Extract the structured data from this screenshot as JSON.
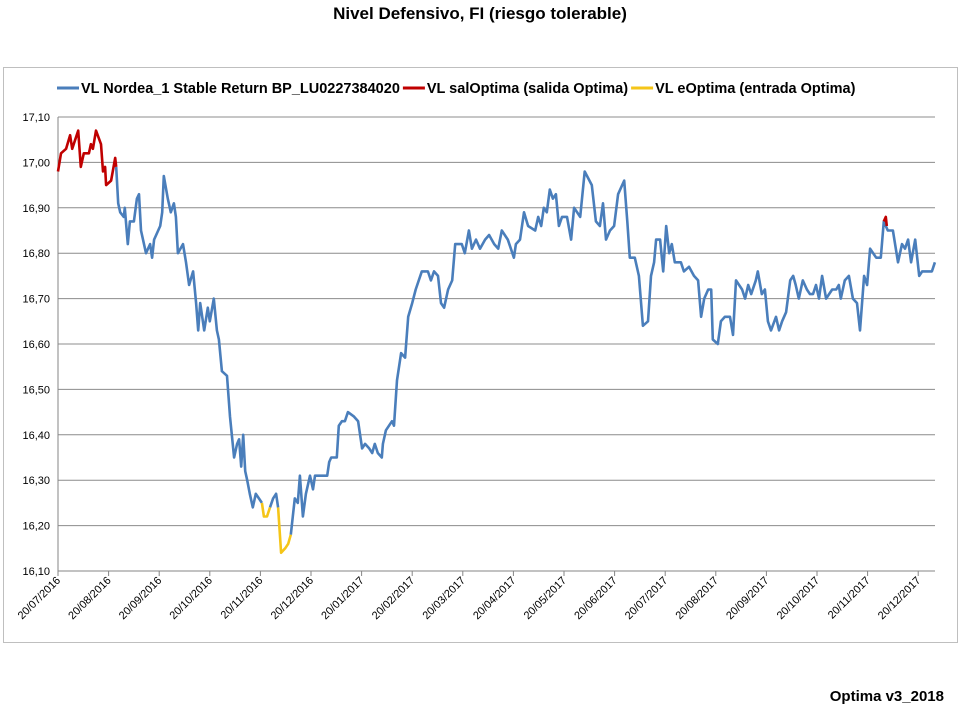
{
  "chart_data": {
    "type": "line",
    "title": "Nivel Defensivo, FI (riesgo tolerable)",
    "xlabel": "",
    "ylabel": "",
    "x_units": "months since 20/07/2016",
    "ylim": [
      16.1,
      17.1
    ],
    "yticks": [
      "16,10",
      "16,20",
      "16,30",
      "16,40",
      "16,50",
      "16,60",
      "16,70",
      "16,80",
      "16,90",
      "17,00",
      "17,10"
    ],
    "xticks": [
      "20/07/2016",
      "20/08/2016",
      "20/09/2016",
      "20/10/2016",
      "20/11/2016",
      "20/12/2016",
      "20/01/2017",
      "20/02/2017",
      "20/03/2017",
      "20/04/2017",
      "20/05/2017",
      "20/06/2017",
      "20/07/2017",
      "20/08/2017",
      "20/09/2017",
      "20/10/2017",
      "20/11/2017",
      "20/12/2017"
    ],
    "grid": true,
    "legend_position": "top",
    "series": [
      {
        "name": "VL Nordea_1 Stable Return BP_LU0227384020",
        "color": "#4a7ebb",
        "segments": [
          [
            [
              1.15,
              16.99
            ],
            [
              1.19,
              16.91
            ],
            [
              1.23,
              16.89
            ],
            [
              1.3,
              16.88
            ],
            [
              1.32,
              16.9
            ],
            [
              1.38,
              16.82
            ],
            [
              1.42,
              16.87
            ],
            [
              1.5,
              16.87
            ],
            [
              1.56,
              16.92
            ],
            [
              1.6,
              16.93
            ],
            [
              1.64,
              16.85
            ],
            [
              1.74,
              16.8
            ],
            [
              1.82,
              16.82
            ],
            [
              1.86,
              16.79
            ],
            [
              1.9,
              16.83
            ],
            [
              2.02,
              16.86
            ],
            [
              2.06,
              16.89
            ],
            [
              2.09,
              16.97
            ],
            [
              2.17,
              16.92
            ],
            [
              2.23,
              16.89
            ],
            [
              2.29,
              16.91
            ],
            [
              2.33,
              16.88
            ],
            [
              2.37,
              16.8
            ],
            [
              2.47,
              16.82
            ],
            [
              2.53,
              16.78
            ],
            [
              2.59,
              16.73
            ],
            [
              2.67,
              16.76
            ],
            [
              2.73,
              16.69
            ],
            [
              2.77,
              16.63
            ],
            [
              2.81,
              16.69
            ],
            [
              2.89,
              16.63
            ],
            [
              2.96,
              16.68
            ],
            [
              3.0,
              16.65
            ],
            [
              3.08,
              16.7
            ],
            [
              3.14,
              16.63
            ],
            [
              3.18,
              16.61
            ],
            [
              3.24,
              16.54
            ],
            [
              3.34,
              16.53
            ],
            [
              3.4,
              16.44
            ],
            [
              3.48,
              16.35
            ],
            [
              3.54,
              16.38
            ],
            [
              3.58,
              16.39
            ],
            [
              3.62,
              16.33
            ],
            [
              3.66,
              16.4
            ],
            [
              3.7,
              16.32
            ],
            [
              3.74,
              16.3
            ],
            [
              3.79,
              16.27
            ],
            [
              3.85,
              16.24
            ],
            [
              3.91,
              16.27
            ],
            [
              3.97,
              16.26
            ],
            [
              4.03,
              16.25
            ]
          ],
          [
            [
              4.19,
              16.24
            ],
            [
              4.25,
              16.26
            ],
            [
              4.31,
              16.27
            ],
            [
              4.35,
              16.24
            ]
          ],
          [
            [
              4.6,
              16.18
            ],
            [
              4.64,
              16.22
            ],
            [
              4.68,
              16.26
            ],
            [
              4.74,
              16.25
            ],
            [
              4.78,
              16.31
            ],
            [
              4.84,
              16.22
            ],
            [
              4.9,
              16.27
            ],
            [
              4.98,
              16.31
            ],
            [
              5.04,
              16.28
            ],
            [
              5.08,
              16.31
            ],
            [
              5.32,
              16.31
            ],
            [
              5.36,
              16.34
            ],
            [
              5.4,
              16.35
            ],
            [
              5.51,
              16.35
            ],
            [
              5.55,
              16.42
            ],
            [
              5.61,
              16.43
            ],
            [
              5.67,
              16.43
            ],
            [
              5.73,
              16.45
            ],
            [
              5.85,
              16.44
            ],
            [
              5.93,
              16.43
            ],
            [
              6.01,
              16.37
            ],
            [
              6.07,
              16.38
            ],
            [
              6.15,
              16.37
            ],
            [
              6.21,
              16.36
            ],
            [
              6.26,
              16.38
            ],
            [
              6.32,
              16.36
            ],
            [
              6.4,
              16.35
            ],
            [
              6.42,
              16.38
            ],
            [
              6.48,
              16.41
            ],
            [
              6.6,
              16.43
            ],
            [
              6.64,
              16.42
            ],
            [
              6.7,
              16.52
            ],
            [
              6.78,
              16.58
            ],
            [
              6.86,
              16.57
            ],
            [
              6.92,
              16.66
            ],
            [
              7.0,
              16.69
            ],
            [
              7.07,
              16.72
            ],
            [
              7.19,
              16.76
            ],
            [
              7.31,
              16.76
            ],
            [
              7.37,
              16.74
            ],
            [
              7.43,
              16.76
            ],
            [
              7.51,
              16.75
            ],
            [
              7.57,
              16.69
            ],
            [
              7.63,
              16.68
            ],
            [
              7.71,
              16.72
            ],
            [
              7.79,
              16.74
            ],
            [
              7.85,
              16.82
            ],
            [
              7.98,
              16.82
            ],
            [
              8.04,
              16.8
            ],
            [
              8.12,
              16.85
            ],
            [
              8.18,
              16.81
            ],
            [
              8.26,
              16.83
            ],
            [
              8.34,
              16.81
            ],
            [
              8.44,
              16.83
            ],
            [
              8.52,
              16.84
            ],
            [
              8.62,
              16.82
            ],
            [
              8.7,
              16.81
            ],
            [
              8.77,
              16.85
            ],
            [
              8.89,
              16.83
            ],
            [
              9.01,
              16.79
            ],
            [
              9.05,
              16.82
            ],
            [
              9.13,
              16.83
            ],
            [
              9.21,
              16.89
            ],
            [
              9.29,
              16.86
            ],
            [
              9.43,
              16.85
            ],
            [
              9.49,
              16.88
            ],
            [
              9.55,
              16.86
            ],
            [
              9.6,
              16.9
            ],
            [
              9.66,
              16.89
            ],
            [
              9.72,
              16.94
            ],
            [
              9.78,
              16.92
            ],
            [
              9.84,
              16.93
            ],
            [
              9.9,
              16.86
            ],
            [
              9.96,
              16.88
            ],
            [
              10.06,
              16.88
            ],
            [
              10.14,
              16.83
            ],
            [
              10.2,
              16.9
            ],
            [
              10.32,
              16.88
            ],
            [
              10.41,
              16.98
            ],
            [
              10.55,
              16.95
            ],
            [
              10.63,
              16.87
            ],
            [
              10.71,
              16.86
            ],
            [
              10.77,
              16.91
            ],
            [
              10.83,
              16.83
            ],
            [
              10.91,
              16.85
            ],
            [
              10.99,
              16.86
            ],
            [
              11.07,
              16.93
            ],
            [
              11.19,
              16.96
            ],
            [
              11.25,
              16.87
            ],
            [
              11.3,
              16.79
            ],
            [
              11.4,
              16.79
            ],
            [
              11.48,
              16.75
            ],
            [
              11.56,
              16.64
            ],
            [
              11.66,
              16.65
            ],
            [
              11.72,
              16.75
            ],
            [
              11.78,
              16.78
            ],
            [
              11.82,
              16.83
            ],
            [
              11.9,
              16.83
            ],
            [
              11.96,
              16.76
            ],
            [
              12.02,
              16.86
            ],
            [
              12.08,
              16.8
            ],
            [
              12.13,
              16.82
            ],
            [
              12.19,
              16.78
            ],
            [
              12.31,
              16.78
            ],
            [
              12.37,
              16.76
            ],
            [
              12.47,
              16.77
            ],
            [
              12.57,
              16.75
            ],
            [
              12.65,
              16.74
            ],
            [
              12.71,
              16.66
            ],
            [
              12.77,
              16.7
            ],
            [
              12.85,
              16.72
            ],
            [
              12.91,
              16.72
            ],
            [
              12.94,
              16.61
            ],
            [
              13.04,
              16.6
            ],
            [
              13.1,
              16.65
            ],
            [
              13.18,
              16.66
            ],
            [
              13.28,
              16.66
            ],
            [
              13.34,
              16.62
            ],
            [
              13.4,
              16.74
            ],
            [
              13.52,
              16.72
            ],
            [
              13.58,
              16.7
            ],
            [
              13.64,
              16.73
            ],
            [
              13.7,
              16.71
            ],
            [
              13.79,
              16.74
            ],
            [
              13.83,
              16.76
            ],
            [
              13.91,
              16.71
            ],
            [
              13.97,
              16.72
            ],
            [
              14.03,
              16.65
            ],
            [
              14.09,
              16.63
            ],
            [
              14.19,
              16.66
            ],
            [
              14.25,
              16.63
            ],
            [
              14.31,
              16.65
            ],
            [
              14.39,
              16.67
            ],
            [
              14.47,
              16.74
            ],
            [
              14.53,
              16.75
            ],
            [
              14.58,
              16.73
            ],
            [
              14.64,
              16.7
            ],
            [
              14.72,
              16.74
            ],
            [
              14.8,
              16.72
            ],
            [
              14.86,
              16.71
            ],
            [
              14.92,
              16.71
            ],
            [
              14.98,
              16.73
            ],
            [
              15.04,
              16.7
            ],
            [
              15.1,
              16.75
            ],
            [
              15.18,
              16.7
            ],
            [
              15.24,
              16.71
            ],
            [
              15.3,
              16.72
            ],
            [
              15.38,
              16.72
            ],
            [
              15.43,
              16.73
            ],
            [
              15.47,
              16.7
            ],
            [
              15.55,
              16.74
            ],
            [
              15.63,
              16.75
            ],
            [
              15.71,
              16.7
            ],
            [
              15.79,
              16.69
            ],
            [
              15.85,
              16.63
            ],
            [
              15.93,
              16.75
            ],
            [
              15.99,
              16.73
            ],
            [
              16.05,
              16.81
            ],
            [
              16.17,
              16.79
            ],
            [
              16.26,
              16.79
            ],
            [
              16.32,
              16.87
            ],
            [
              16.4,
              16.85
            ],
            [
              16.5,
              16.85
            ],
            [
              16.6,
              16.78
            ],
            [
              16.68,
              16.82
            ],
            [
              16.74,
              16.81
            ],
            [
              16.8,
              16.83
            ],
            [
              16.86,
              16.78
            ],
            [
              16.94,
              16.83
            ],
            [
              17.02,
              16.75
            ],
            [
              17.08,
              16.76
            ],
            [
              17.27,
              16.76
            ],
            [
              17.33,
              16.78
            ]
          ]
        ]
      },
      {
        "name": "VL salOptima (salida Optima)",
        "color": "#c00000",
        "segments": [
          [
            [
              0,
              16.98
            ],
            [
              0.06,
              17.02
            ],
            [
              0.16,
              17.03
            ],
            [
              0.24,
              17.06
            ],
            [
              0.28,
              17.03
            ],
            [
              0.34,
              17.05
            ],
            [
              0.4,
              17.07
            ],
            [
              0.45,
              16.99
            ],
            [
              0.51,
              17.02
            ],
            [
              0.61,
              17.02
            ],
            [
              0.65,
              17.04
            ],
            [
              0.69,
              17.03
            ],
            [
              0.75,
              17.07
            ],
            [
              0.85,
              17.04
            ],
            [
              0.89,
              16.98
            ],
            [
              0.93,
              16.99
            ],
            [
              0.95,
              16.95
            ],
            [
              1.05,
              16.96
            ],
            [
              1.13,
              17.01
            ],
            [
              1.15,
              16.99
            ]
          ],
          [
            [
              16.32,
              16.87
            ],
            [
              16.36,
              16.88
            ],
            [
              16.38,
              16.86
            ]
          ]
        ]
      },
      {
        "name": "VL eOptima (entrada Optima)",
        "color": "#f5c518",
        "segments": [
          [
            [
              4.03,
              16.25
            ],
            [
              4.07,
              16.22
            ],
            [
              4.13,
              16.22
            ],
            [
              4.19,
              16.24
            ]
          ],
          [
            [
              4.35,
              16.24
            ],
            [
              4.41,
              16.14
            ],
            [
              4.49,
              16.15
            ],
            [
              4.55,
              16.16
            ],
            [
              4.6,
              16.18
            ]
          ]
        ]
      }
    ]
  },
  "footer": "Optima v3_2018"
}
